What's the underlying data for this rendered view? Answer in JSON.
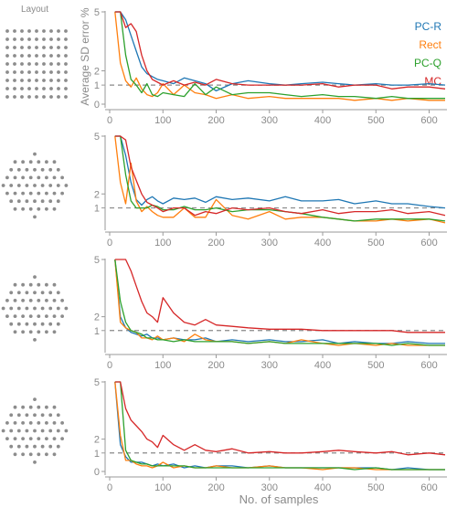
{
  "figure": {
    "layout_label": "Layout",
    "ylabel": "Average SD error %",
    "xlabel": "No. of samples",
    "legend": [
      "PC-R",
      "Rect",
      "PC-Q",
      "MC"
    ]
  },
  "colors": {
    "PC-R": "#1f77b4",
    "Rect": "#ff7f0e",
    "PC-Q": "#2ca02c",
    "MC": "#d62728",
    "axis": "#9a9a9a",
    "text": "#8a8a8a",
    "reference": "#888888",
    "layout_dots": "#8c8c8c"
  },
  "layouts": [
    "square-grid",
    "circular-hex",
    "circular-hex",
    "circular-hex"
  ],
  "chart_data": [
    {
      "type": "line",
      "panel": "square-grid",
      "xlim": [
        0,
        630
      ],
      "ylim": [
        0,
        5.2
      ],
      "xticks": [
        0,
        100,
        200,
        300,
        400,
        500,
        600
      ],
      "yticks": [
        0,
        1,
        2,
        5
      ],
      "reference_y": 1,
      "x": [
        10,
        20,
        30,
        40,
        50,
        60,
        70,
        80,
        90,
        100,
        120,
        140,
        160,
        180,
        200,
        230,
        260,
        300,
        330,
        360,
        400,
        430,
        460,
        500,
        530,
        560,
        600,
        630
      ],
      "series": [
        {
          "name": "PC-R",
          "values": [
            5,
            5,
            4.6,
            3.8,
            3.0,
            2.2,
            1.8,
            1.6,
            1.4,
            1.3,
            1.1,
            1.5,
            1.3,
            1.1,
            0.7,
            1.1,
            1.3,
            1.1,
            1.0,
            1.1,
            1.2,
            1.1,
            1.0,
            1.1,
            1.0,
            1.0,
            1.1,
            1.0
          ]
        },
        {
          "name": "Rect",
          "values": [
            5,
            2.4,
            1.3,
            0.9,
            1.5,
            0.8,
            0.5,
            0.4,
            0.6,
            1.1,
            0.5,
            1.0,
            0.6,
            0.5,
            0.3,
            0.5,
            0.3,
            0.4,
            0.3,
            0.3,
            0.3,
            0.3,
            0.2,
            0.3,
            0.2,
            0.3,
            0.2,
            0.2
          ]
        },
        {
          "name": "PC-Q",
          "values": [
            5,
            5,
            2.8,
            1.4,
            1.0,
            0.6,
            1.1,
            0.5,
            0.4,
            0.6,
            0.5,
            0.4,
            1.1,
            0.5,
            0.9,
            0.5,
            0.6,
            0.6,
            0.5,
            0.4,
            0.5,
            0.4,
            0.4,
            0.3,
            0.4,
            0.3,
            0.3,
            0.3
          ]
        },
        {
          "name": "MC",
          "values": [
            5,
            5,
            4.2,
            4.4,
            4.0,
            2.8,
            2.0,
            1.4,
            1.2,
            1.0,
            1.3,
            1.0,
            1.2,
            1.0,
            1.4,
            1.1,
            1.0,
            1.0,
            1.0,
            1.0,
            1.1,
            0.9,
            1.0,
            1.0,
            0.8,
            0.9,
            0.9,
            0.8
          ]
        }
      ]
    },
    {
      "type": "line",
      "panel": "circular-hex",
      "xlim": [
        0,
        630
      ],
      "ylim": [
        0,
        5.2
      ],
      "xticks": [
        0,
        100,
        200,
        300,
        400,
        500,
        600
      ],
      "yticks": [
        1,
        2,
        5
      ],
      "reference_y": 1,
      "x": [
        10,
        20,
        30,
        40,
        50,
        60,
        70,
        80,
        90,
        100,
        120,
        140,
        160,
        180,
        200,
        230,
        260,
        300,
        330,
        360,
        400,
        430,
        460,
        500,
        530,
        560,
        600,
        630
      ],
      "series": [
        {
          "name": "PC-R",
          "values": [
            5,
            5,
            4.0,
            2.6,
            1.6,
            1.2,
            1.6,
            1.8,
            1.5,
            1.3,
            1.7,
            1.6,
            1.7,
            1.4,
            1.8,
            1.6,
            1.7,
            1.5,
            1.8,
            1.5,
            1.5,
            1.6,
            1.3,
            1.5,
            1.3,
            1.3,
            1.1,
            1.0
          ]
        },
        {
          "name": "Rect",
          "values": [
            5,
            2.6,
            1.3,
            3.6,
            1.5,
            0.8,
            1.1,
            0.8,
            0.6,
            0.5,
            0.5,
            1.0,
            0.5,
            0.5,
            1.6,
            0.6,
            0.4,
            0.8,
            0.4,
            0.5,
            0.5,
            0.4,
            0.3,
            0.3,
            0.4,
            0.3,
            0.4,
            0.2
          ]
        },
        {
          "name": "PC-Q",
          "values": [
            5,
            5,
            3.0,
            1.5,
            1.0,
            1.0,
            1.0,
            1.2,
            1.1,
            0.9,
            0.9,
            1.1,
            0.9,
            0.9,
            1.0,
            0.8,
            0.9,
            0.9,
            0.8,
            0.7,
            0.5,
            0.4,
            0.3,
            0.4,
            0.4,
            0.4,
            0.4,
            0.3
          ]
        },
        {
          "name": "MC",
          "values": [
            5,
            5,
            4.8,
            3.4,
            2.7,
            2.0,
            1.4,
            1.2,
            1.0,
            0.8,
            1.0,
            1.0,
            0.6,
            0.8,
            0.7,
            1.0,
            0.9,
            1.0,
            0.8,
            0.7,
            0.9,
            0.7,
            0.8,
            0.8,
            0.9,
            0.7,
            0.8,
            0.6
          ]
        }
      ]
    },
    {
      "type": "line",
      "panel": "circular-hex",
      "xlim": [
        0,
        630
      ],
      "ylim": [
        0,
        5.2
      ],
      "xticks": [
        0,
        100,
        200,
        300,
        400,
        500,
        600
      ],
      "yticks": [
        1,
        2,
        5
      ],
      "reference_y": 1,
      "x": [
        10,
        20,
        30,
        40,
        50,
        60,
        70,
        80,
        90,
        100,
        120,
        140,
        160,
        180,
        200,
        230,
        260,
        300,
        330,
        360,
        400,
        430,
        460,
        500,
        530,
        560,
        600,
        630
      ],
      "series": [
        {
          "name": "PC-R",
          "values": [
            5,
            2.0,
            1.2,
            0.9,
            0.8,
            0.7,
            0.8,
            0.6,
            0.6,
            0.5,
            0.6,
            0.5,
            0.5,
            0.6,
            0.4,
            0.5,
            0.4,
            0.5,
            0.4,
            0.4,
            0.5,
            0.3,
            0.4,
            0.3,
            0.3,
            0.4,
            0.3,
            0.3
          ]
        },
        {
          "name": "Rect",
          "values": [
            5,
            1.6,
            1.2,
            1.0,
            0.9,
            0.6,
            0.6,
            0.5,
            0.7,
            0.5,
            0.6,
            0.4,
            0.8,
            0.5,
            0.4,
            0.4,
            0.3,
            0.4,
            0.3,
            0.5,
            0.3,
            0.2,
            0.3,
            0.2,
            0.3,
            0.2,
            0.2,
            0.2
          ]
        },
        {
          "name": "PC-Q",
          "values": [
            5,
            2.8,
            1.6,
            1.0,
            0.9,
            0.8,
            0.6,
            0.6,
            0.5,
            0.5,
            0.4,
            0.5,
            0.4,
            0.4,
            0.4,
            0.4,
            0.3,
            0.4,
            0.3,
            0.3,
            0.3,
            0.3,
            0.3,
            0.3,
            0.2,
            0.3,
            0.2,
            0.2
          ]
        },
        {
          "name": "MC",
          "values": [
            5,
            5,
            5,
            4.4,
            3.6,
            2.8,
            2.2,
            2.0,
            1.6,
            3.0,
            2.2,
            1.6,
            1.4,
            1.8,
            1.4,
            1.3,
            1.2,
            1.1,
            1.1,
            1.1,
            1.0,
            1.0,
            1.0,
            1.0,
            1.0,
            0.9,
            0.9,
            0.9
          ]
        }
      ]
    },
    {
      "type": "line",
      "panel": "circular-hex",
      "xlim": [
        0,
        630
      ],
      "ylim": [
        0,
        5.2
      ],
      "xticks": [
        0,
        100,
        200,
        300,
        400,
        500,
        600
      ],
      "yticks": [
        0,
        1,
        2,
        5
      ],
      "reference_y": 1,
      "x": [
        10,
        20,
        30,
        40,
        50,
        60,
        70,
        80,
        90,
        100,
        120,
        140,
        160,
        180,
        200,
        230,
        260,
        300,
        330,
        360,
        400,
        430,
        460,
        500,
        530,
        560,
        600,
        630
      ],
      "series": [
        {
          "name": "PC-R",
          "values": [
            5,
            1.6,
            0.8,
            0.5,
            0.5,
            0.5,
            0.4,
            0.3,
            0.4,
            0.3,
            0.4,
            0.2,
            0.3,
            0.2,
            0.3,
            0.3,
            0.2,
            0.3,
            0.2,
            0.2,
            0.2,
            0.2,
            0.2,
            0.2,
            0.1,
            0.2,
            0.1,
            0.1
          ]
        },
        {
          "name": "Rect",
          "values": [
            5,
            2.2,
            0.6,
            0.6,
            0.4,
            0.3,
            0.3,
            0.2,
            0.3,
            0.5,
            0.2,
            0.3,
            0.2,
            0.2,
            0.3,
            0.2,
            0.2,
            0.3,
            0.2,
            0.2,
            0.1,
            0.2,
            0.2,
            0.1,
            0.1,
            0.1,
            0.1,
            0.1
          ]
        },
        {
          "name": "PC-Q",
          "values": [
            5,
            5,
            1.2,
            0.6,
            0.5,
            0.4,
            0.4,
            0.3,
            0.3,
            0.3,
            0.3,
            0.3,
            0.2,
            0.2,
            0.2,
            0.2,
            0.2,
            0.2,
            0.2,
            0.2,
            0.2,
            0.2,
            0.1,
            0.2,
            0.1,
            0.1,
            0.1,
            0.1
          ]
        },
        {
          "name": "MC",
          "values": [
            5,
            5,
            3.6,
            3.0,
            2.7,
            2.4,
            2.0,
            1.8,
            1.4,
            2.2,
            1.6,
            1.2,
            1.6,
            1.2,
            1.1,
            1.3,
            1.0,
            1.1,
            1.0,
            1.0,
            1.1,
            1.2,
            1.1,
            1.0,
            1.1,
            0.9,
            1.0,
            0.9
          ]
        }
      ]
    }
  ]
}
